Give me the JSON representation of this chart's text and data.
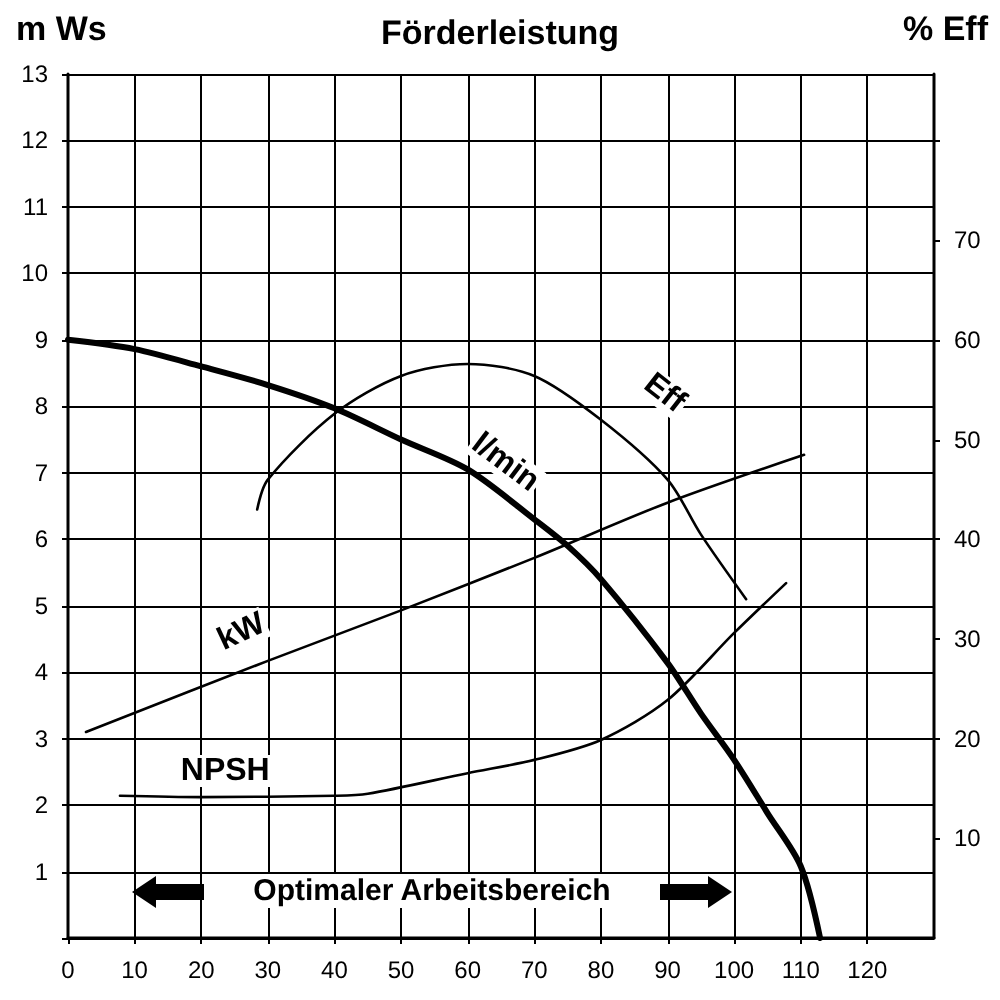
{
  "chart_data": {
    "type": "line",
    "title": "Förderleistung",
    "ylabel": "m Ws",
    "y2label": "% Eff",
    "annotations": [
      "Optimaler Arbeitsbereich"
    ],
    "xlim": [
      0,
      130
    ],
    "xticks": [
      0,
      10,
      20,
      30,
      40,
      50,
      60,
      70,
      80,
      90,
      100,
      110,
      120
    ],
    "ylim": [
      0,
      13
    ],
    "yticks": [
      {
        "value": 0,
        "label": null
      },
      1,
      2,
      3,
      4,
      5,
      6,
      7,
      8,
      9,
      10,
      11,
      12,
      13
    ],
    "y2lim": [
      0,
      86.7
    ],
    "y2ticks": [
      10,
      20,
      30,
      40,
      50,
      60,
      70,
      {
        "value": 80,
        "label": null
      }
    ],
    "grid": true,
    "legend": false,
    "marker": "none",
    "line_style": "solid",
    "series": [
      {
        "name": "l/min",
        "color": "#000000",
        "x": [
          0,
          10,
          20,
          30,
          40,
          50,
          60,
          70,
          75,
          80,
          90,
          95,
          100,
          105,
          110,
          112.9
        ],
        "values": [
          9.0,
          8.86,
          8.6,
          8.32,
          7.97,
          7.5,
          7.05,
          6.3,
          5.9,
          5.4,
          4.14,
          3.38,
          2.68,
          1.88,
          1.08,
          0
        ]
      },
      {
        "name": "Eff",
        "color": "#000000",
        "axis": "y2",
        "x": [
          28.4,
          30,
          40,
          50,
          60,
          70,
          80,
          90,
          95,
          101.8
        ],
        "values": [
          43,
          46,
          52.6,
          56.4,
          57.6,
          56.4,
          52,
          46,
          40.5,
          34
        ]
      },
      {
        "name": "kW",
        "color": "#000000",
        "x": [
          2.7,
          30,
          50,
          70,
          90,
          110.5
        ],
        "values": [
          3.1,
          4.17,
          4.93,
          5.72,
          6.55,
          7.27
        ]
      },
      {
        "name": "NPSH",
        "color": "#000000",
        "x": [
          7.8,
          20,
          40,
          45,
          60,
          70,
          80,
          90,
          100,
          107.8
        ],
        "values": [
          2.14,
          2.12,
          2.14,
          2.17,
          2.48,
          2.68,
          2.98,
          3.58,
          4.59,
          5.34
        ]
      }
    ]
  }
}
